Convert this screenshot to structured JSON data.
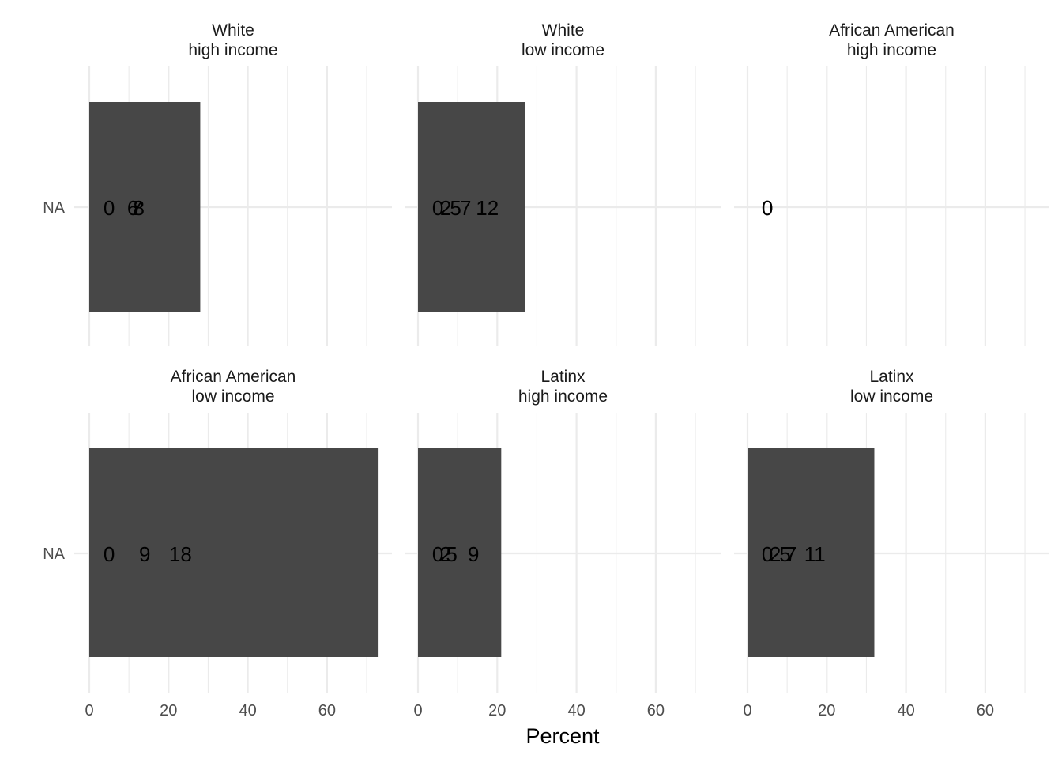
{
  "chart_data": {
    "type": "bar",
    "orientation": "horizontal",
    "xlabel": "Percent",
    "ylabel": "",
    "xlim": [
      0,
      76
    ],
    "x_ticks": [
      "0",
      "20",
      "40",
      "60"
    ],
    "y_categories": [
      "NA"
    ],
    "grid": true,
    "colors": {
      "bar": "#474747",
      "grid": "#ebebeb",
      "text": "#1a1a1a",
      "tick": "#4d4d4d"
    },
    "panels": [
      {
        "title_line1": "White",
        "title_line2": "high income",
        "value": 28,
        "labels": [
          {
            "text": "0",
            "x": 5
          },
          {
            "text": "6",
            "x": 11
          },
          {
            "text": "7",
            "x": 12
          },
          {
            "text": "8",
            "x": 12.5
          }
        ]
      },
      {
        "title_line1": "White",
        "title_line2": "low income",
        "value": 27,
        "labels": [
          {
            "text": "0",
            "x": 5
          },
          {
            "text": "2",
            "x": 7
          },
          {
            "text": "5",
            "x": 9.5
          },
          {
            "text": "7",
            "x": 12
          },
          {
            "text": "12",
            "x": 17.5
          }
        ]
      },
      {
        "title_line1": "African American",
        "title_line2": "high income",
        "value": 0,
        "labels": [
          {
            "text": "0",
            "x": 5
          },
          {
            "text": "0",
            "x": 5
          }
        ]
      },
      {
        "title_line1": "African American",
        "title_line2": "low income",
        "value": 73,
        "labels": [
          {
            "text": "0",
            "x": 5
          },
          {
            "text": "9",
            "x": 14
          },
          {
            "text": "18",
            "x": 23
          }
        ]
      },
      {
        "title_line1": "Latinx",
        "title_line2": "high income",
        "value": 21,
        "labels": [
          {
            "text": "0",
            "x": 5
          },
          {
            "text": "2",
            "x": 7
          },
          {
            "text": "5",
            "x": 8.5
          },
          {
            "text": "9",
            "x": 14
          }
        ]
      },
      {
        "title_line1": "Latinx",
        "title_line2": "low income",
        "value": 32,
        "labels": [
          {
            "text": "0",
            "x": 5
          },
          {
            "text": "2",
            "x": 7
          },
          {
            "text": "5",
            "x": 9.5
          },
          {
            "text": "7",
            "x": 11
          },
          {
            "text": "11",
            "x": 17
          }
        ]
      }
    ]
  }
}
